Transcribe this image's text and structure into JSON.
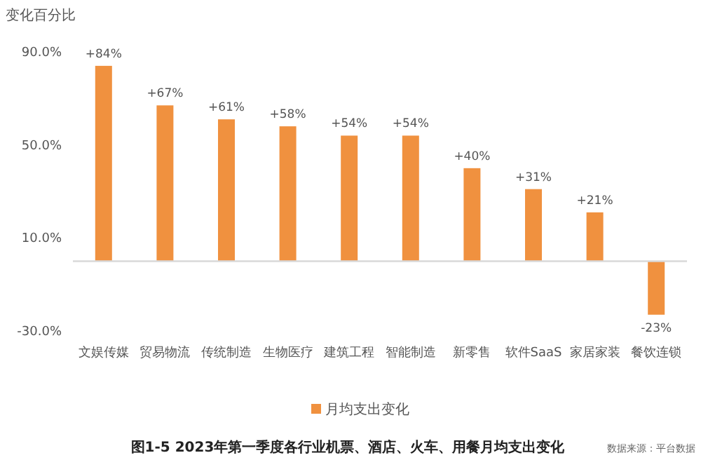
{
  "chart_data": {
    "type": "bar",
    "ylabel": "变化百分比",
    "title": "图1-5 2023年第一季度各行业机票、酒店、火车、用餐月均支出变化",
    "annotations": [
      "数据来源：平台数据"
    ],
    "categories": [
      "文娱传媒",
      "贸易物流",
      "传统制造",
      "生物医疗",
      "建筑工程",
      "智能制造",
      "新零售",
      "软件SaaS",
      "家居家装",
      "餐饮连锁"
    ],
    "series": [
      {
        "name": "月均支出变化",
        "color": "#f0913f",
        "values": [
          84,
          67,
          61,
          58,
          54,
          54,
          40,
          31,
          21,
          -23
        ],
        "value_labels": [
          "+84%",
          "+67%",
          "+61%",
          "+58%",
          "+54%",
          "+54%",
          "+40%",
          "+31%",
          "+21%",
          "-23%"
        ]
      }
    ],
    "ylim": [
      -30,
      90
    ],
    "yticks": [
      {
        "value": 90,
        "label": "90.0%"
      },
      {
        "value": 50,
        "label": "50.0%"
      },
      {
        "value": 10,
        "label": "10.0%"
      },
      {
        "value": -30,
        "label": "-30.0%"
      }
    ],
    "grid": false,
    "legend": "bottom"
  }
}
